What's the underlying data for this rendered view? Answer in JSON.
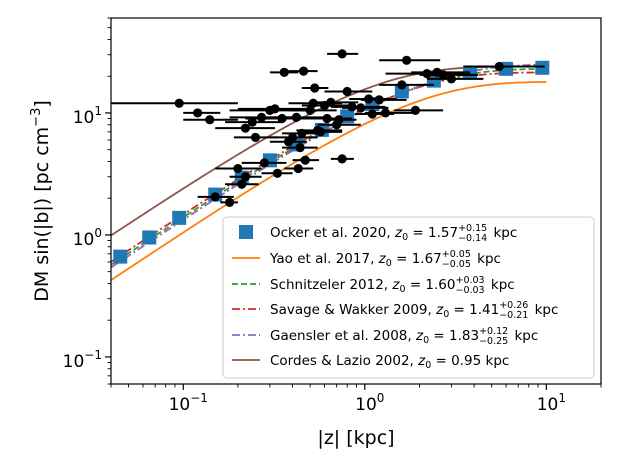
{
  "chart_data": {
    "type": "scatter",
    "xlabel": "|z| [kpc]",
    "ylabel": "DM sin(|b|) [pc cm",
    "ylabel_sup": "−3",
    "ylabel_end": "]",
    "x_scale": "log",
    "y_scale": "log",
    "xlim": [
      0.04,
      20
    ],
    "ylim": [
      0.06,
      60
    ],
    "x_ticks": [
      {
        "value": 0.1,
        "base": "10",
        "exp": "−1"
      },
      {
        "value": 1,
        "base": "10",
        "exp": "0"
      },
      {
        "value": 10,
        "base": "10",
        "exp": "1"
      }
    ],
    "y_ticks": [
      {
        "value": 0.1,
        "base": "10",
        "exp": "−1"
      },
      {
        "value": 1,
        "base": "10",
        "exp": "0"
      },
      {
        "value": 10,
        "base": "10",
        "exp": "1"
      }
    ],
    "legend_position": "lower-right",
    "grid": false,
    "models": [
      {
        "name": "Ocker et al. 2020, ",
        "z_text": "z",
        "sub": "0",
        "value": " = 1.57",
        "sup_err": "+0.15",
        "sub_err": "−0.14",
        "unit": " kpc",
        "A": 23.5,
        "z0": 1.57,
        "color": "#1f77b4",
        "style": "squares"
      },
      {
        "name": "Yao et al. 2017, ",
        "z_text": "z",
        "sub": "0",
        "value": " = 1.67",
        "sup_err": "+0.05",
        "sub_err": "−0.05",
        "unit": " kpc",
        "A": 18.0,
        "z0": 1.67,
        "color": "#ff7f0e",
        "style": "solid"
      },
      {
        "name": "Schnitzeler 2012, ",
        "z_text": "z",
        "sub": "0",
        "value": " = 1.60",
        "sup_err": "+0.03",
        "sub_err": "−0.03",
        "unit": " kpc",
        "A": 23.0,
        "z0": 1.6,
        "color": "#2ca02c",
        "style": "dashed"
      },
      {
        "name": "Savage & Wakker 2009, ",
        "z_text": "z",
        "sub": "0",
        "value": " = 1.41",
        "sup_err": "+0.26",
        "sub_err": "−0.21",
        "unit": " kpc",
        "A": 21.5,
        "z0": 1.41,
        "color": "#d62728",
        "style": "dashdot"
      },
      {
        "name": "Gaensler et al. 2008, ",
        "z_text": "z",
        "sub": "0",
        "value": " = 1.83",
        "sup_err": "+0.12",
        "sub_err": "−0.25",
        "unit": " kpc",
        "A": 25.0,
        "z0": 1.83,
        "color": "#9467bd",
        "style": "dashdot"
      },
      {
        "name": "Cordes & Lazio 2002, ",
        "z_text": "z",
        "sub": "0",
        "value": " = 0.95",
        "sup_err": "",
        "sub_err": "",
        "unit": " kpc",
        "A": 24.0,
        "z0": 0.95,
        "color": "#8c564b",
        "style": "solid"
      }
    ],
    "ocker_marker_z": [
      0.045,
      0.065,
      0.095,
      0.15,
      0.21,
      0.3,
      0.42,
      0.58,
      0.8,
      1.1,
      1.6,
      2.4,
      3.8,
      6.0,
      9.5
    ],
    "points": [
      {
        "x": 0.095,
        "y": 12.0,
        "xerr": [
          0.04,
          0.2
        ]
      },
      {
        "x": 0.12,
        "y": 10.0,
        "xerr": [
          0.1,
          0.16
        ]
      },
      {
        "x": 0.14,
        "y": 8.8,
        "xerr": [
          0.1,
          0.2
        ]
      },
      {
        "x": 0.15,
        "y": 2.05,
        "xerr": [
          0.12,
          0.19
        ]
      },
      {
        "x": 0.18,
        "y": 1.85,
        "xerr": [
          0.16,
          0.2
        ]
      },
      {
        "x": 0.2,
        "y": 3.5,
        "xerr": [
          0.15,
          0.27
        ]
      },
      {
        "x": 0.21,
        "y": 2.6,
        "xerr": [
          0.17,
          0.26
        ]
      },
      {
        "x": 0.22,
        "y": 3.0,
        "xerr": [
          0.18,
          0.27
        ]
      },
      {
        "x": 0.22,
        "y": 7.5,
        "xerr": [
          0.15,
          0.32
        ]
      },
      {
        "x": 0.24,
        "y": 8.4,
        "xerr": [
          0.17,
          0.35
        ]
      },
      {
        "x": 0.25,
        "y": 6.3,
        "xerr": [
          0.19,
          0.33
        ]
      },
      {
        "x": 0.27,
        "y": 9.2,
        "xerr": [
          0.18,
          0.4
        ]
      },
      {
        "x": 0.28,
        "y": 3.9,
        "xerr": [
          0.21,
          0.37
        ]
      },
      {
        "x": 0.3,
        "y": 10.5,
        "xerr": [
          0.18,
          0.5
        ]
      },
      {
        "x": 0.32,
        "y": 10.8,
        "xerr": [
          0.2,
          0.5
        ]
      },
      {
        "x": 0.33,
        "y": 3.2,
        "xerr": [
          0.27,
          0.4
        ]
      },
      {
        "x": 0.35,
        "y": 9.0,
        "xerr": [
          0.22,
          0.55
        ]
      },
      {
        "x": 0.36,
        "y": 21.5,
        "xerr": [
          0.3,
          0.43
        ]
      },
      {
        "x": 0.38,
        "y": 5.8,
        "xerr": [
          0.3,
          0.48
        ]
      },
      {
        "x": 0.4,
        "y": 6.3,
        "xerr": [
          0.3,
          0.55
        ]
      },
      {
        "x": 0.42,
        "y": 9.2,
        "xerr": [
          0.3,
          0.6
        ]
      },
      {
        "x": 0.43,
        "y": 3.5,
        "xerr": [
          0.36,
          0.52
        ]
      },
      {
        "x": 0.44,
        "y": 5.2,
        "xerr": [
          0.35,
          0.55
        ]
      },
      {
        "x": 0.45,
        "y": 6.8,
        "xerr": [
          0.35,
          0.6
        ]
      },
      {
        "x": 0.46,
        "y": 22.0,
        "xerr": [
          0.38,
          0.55
        ]
      },
      {
        "x": 0.47,
        "y": 4.1,
        "xerr": [
          0.4,
          0.56
        ]
      },
      {
        "x": 0.5,
        "y": 10.5,
        "xerr": [
          0.38,
          0.7
        ]
      },
      {
        "x": 0.52,
        "y": 12.0,
        "xerr": [
          0.38,
          0.75
        ]
      },
      {
        "x": 0.53,
        "y": 16.0,
        "xerr": [
          0.45,
          0.63
        ]
      },
      {
        "x": 0.55,
        "y": 7.2,
        "xerr": [
          0.42,
          0.75
        ]
      },
      {
        "x": 0.57,
        "y": 7.0,
        "xerr": [
          0.45,
          0.75
        ]
      },
      {
        "x": 0.6,
        "y": 11.5,
        "xerr": [
          0.45,
          0.82
        ]
      },
      {
        "x": 0.62,
        "y": 9.0,
        "xerr": [
          0.48,
          0.85
        ]
      },
      {
        "x": 0.65,
        "y": 12.2,
        "xerr": [
          0.5,
          0.92
        ]
      },
      {
        "x": 0.7,
        "y": 8.0,
        "xerr": [
          0.55,
          0.95
        ]
      },
      {
        "x": 0.72,
        "y": 8.8,
        "xerr": [
          0.6,
          0.9
        ]
      },
      {
        "x": 0.75,
        "y": 4.2,
        "xerr": [
          0.65,
          0.87
        ]
      },
      {
        "x": 0.75,
        "y": 30.5,
        "xerr": [
          0.62,
          0.92
        ]
      },
      {
        "x": 0.8,
        "y": 15.0,
        "xerr": [
          0.6,
          1.1
        ]
      },
      {
        "x": 0.85,
        "y": 11.2,
        "xerr": [
          0.65,
          1.3
        ]
      },
      {
        "x": 0.95,
        "y": 11.0,
        "xerr": [
          0.75,
          1.35
        ]
      },
      {
        "x": 1.05,
        "y": 13.0,
        "xerr": [
          0.82,
          1.5
        ]
      },
      {
        "x": 1.1,
        "y": 9.8,
        "xerr": [
          0.88,
          1.45
        ]
      },
      {
        "x": 1.2,
        "y": 12.8,
        "xerr": [
          0.95,
          1.7
        ]
      },
      {
        "x": 1.3,
        "y": 10.0,
        "xerr": [
          1.0,
          1.95
        ]
      },
      {
        "x": 1.6,
        "y": 17.0,
        "xerr": [
          1.2,
          2.4
        ]
      },
      {
        "x": 1.7,
        "y": 27.0,
        "xerr": [
          1.2,
          2.6
        ]
      },
      {
        "x": 1.9,
        "y": 10.5,
        "xerr": [
          1.45,
          2.7
        ]
      },
      {
        "x": 2.2,
        "y": 21.0,
        "xerr": [
          1.3,
          3.8
        ]
      },
      {
        "x": 2.5,
        "y": 21.5,
        "xerr": [
          1.8,
          3.8
        ]
      },
      {
        "x": 2.7,
        "y": 20.5,
        "xerr": [
          2.0,
          4.2
        ]
      },
      {
        "x": 3.0,
        "y": 19.0,
        "xerr": [
          2.2,
          4.5
        ]
      },
      {
        "x": 5.5,
        "y": 24.0,
        "xerr": [
          3.5,
          9.8
        ]
      }
    ]
  }
}
